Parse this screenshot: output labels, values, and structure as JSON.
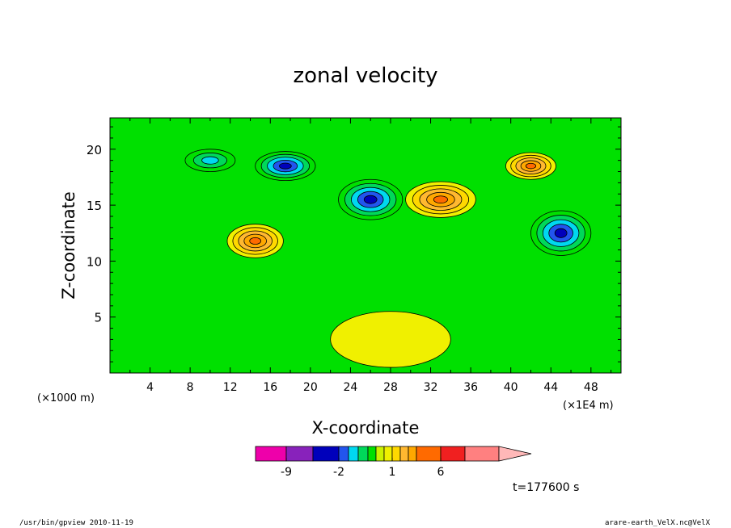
{
  "chart_data": {
    "type": "heatmap",
    "title": "zonal velocity",
    "xlabel": "X-coordinate",
    "ylabel": "Z-coordinate",
    "x_unit_label": "(×1000 m)",
    "x_scale_label": "(×1E4 m)",
    "xlim": [
      0,
      51
    ],
    "ylim": [
      0,
      22.8
    ],
    "x_ticks": [
      "4",
      "8",
      "12",
      "16",
      "20",
      "24",
      "28",
      "32",
      "36",
      "40",
      "44",
      "48"
    ],
    "y_ticks": [
      "5",
      "10",
      "15",
      "20"
    ],
    "time_label": "t=177600 s",
    "colorbar": {
      "levels": [
        -12,
        -9,
        -6,
        -2,
        -1.5,
        -1,
        -0.5,
        0,
        0.5,
        1,
        2,
        3,
        4,
        6,
        9,
        12
      ],
      "colors": [
        "#ee00aa",
        "#8822bb",
        "#0000bb",
        "#2255ee",
        "#00d8f0",
        "#00d85a",
        "#00e000",
        "#ccf200",
        "#f0f000",
        "#ffd800",
        "#ffb830",
        "#ffa800",
        "#ff6a00",
        "#f02020",
        "#ff8080",
        "#ffb8b8"
      ],
      "tick_labels": [
        {
          "label": "-9",
          "level": -9
        },
        {
          "label": "-2",
          "level": -2
        },
        {
          "label": "1",
          "level": 1
        },
        {
          "label": "6",
          "level": 6
        }
      ]
    },
    "features": [
      {
        "x": 14.5,
        "z": 11.8,
        "value": 4,
        "rx": 2.8,
        "rz": 1.5
      },
      {
        "x": 33,
        "z": 15.5,
        "value": 4,
        "rx": 3.5,
        "rz": 1.6
      },
      {
        "x": 26,
        "z": 15.5,
        "value": -6,
        "rx": 3.2,
        "rz": 1.8
      },
      {
        "x": 17.5,
        "z": 18.5,
        "value": -6,
        "rx": 3.0,
        "rz": 1.3
      },
      {
        "x": 45,
        "z": 12.5,
        "value": -6,
        "rx": 3.0,
        "rz": 2.0
      },
      {
        "x": 42,
        "z": 18.5,
        "value": 4,
        "rx": 2.5,
        "rz": 1.2
      },
      {
        "x": 10,
        "z": 19,
        "value": -1.5,
        "rx": 2.5,
        "rz": 1.0
      },
      {
        "x": 28,
        "z": 3,
        "value": 0.5,
        "rx": 6,
        "rz": 2.5
      }
    ]
  },
  "footer": {
    "left": "/usr/bin/gpview  2010-11-19",
    "right": "arare-earth_VelX.nc@VelX"
  }
}
